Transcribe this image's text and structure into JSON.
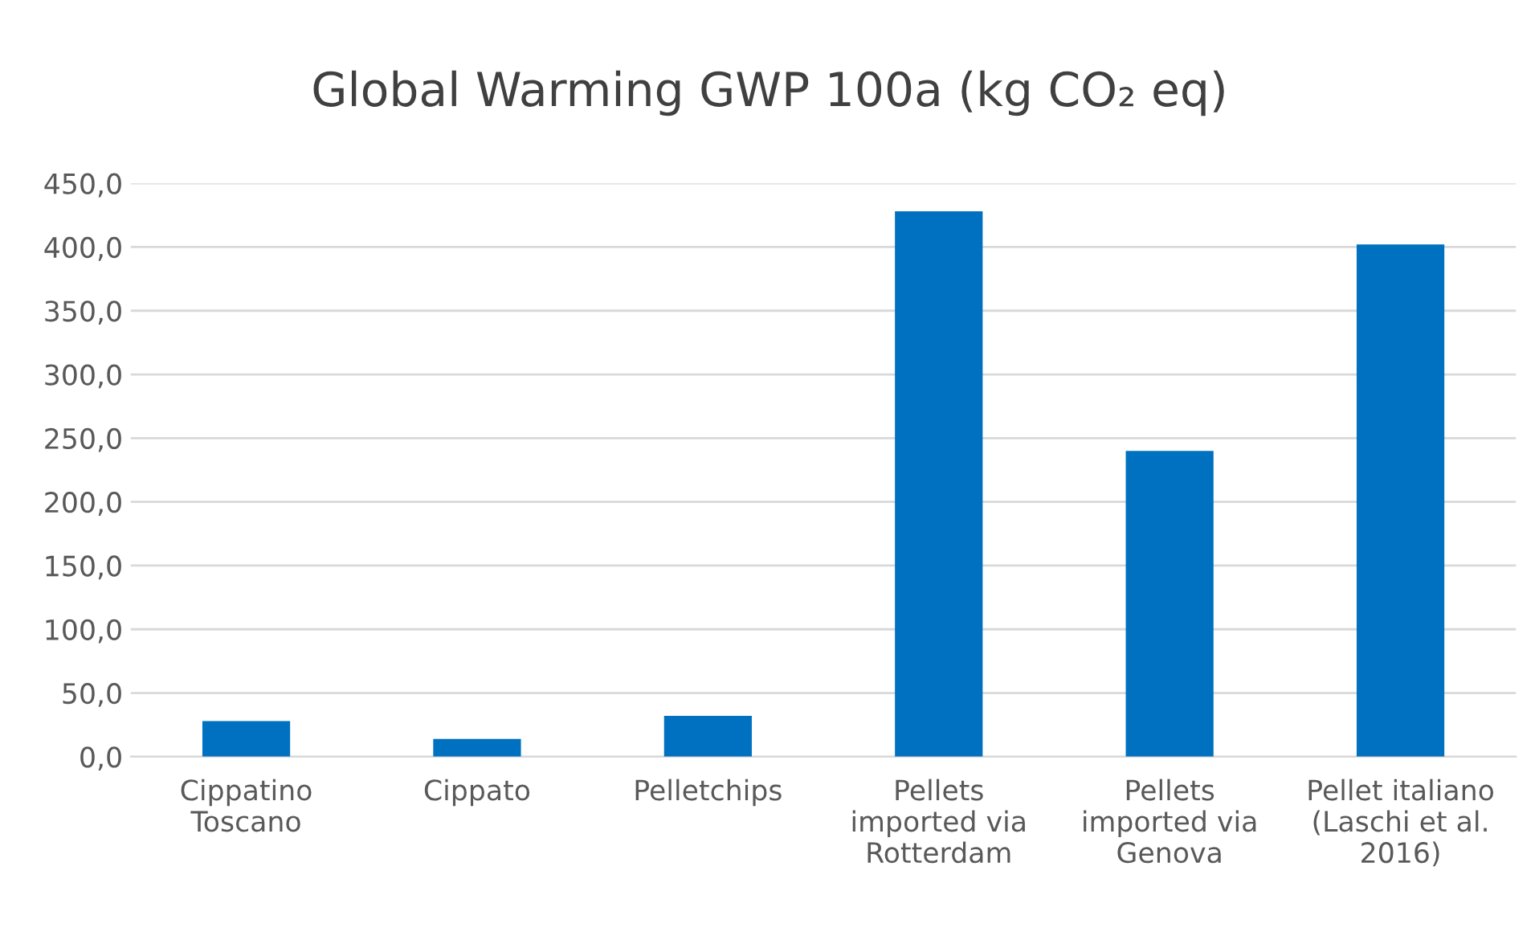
{
  "chart_data": {
    "type": "bar",
    "title": "Global Warming GWP 100a (kg CO₂ eq)",
    "categories": [
      "Cippatino\nToscano",
      "Cippato",
      "Pelletchips",
      "Pellets\nimported via\nRotterdam",
      "Pellets\nimported via\nGenova",
      "Pellet italiano\n(Laschi et al.\n2016)"
    ],
    "values": [
      28,
      14,
      32,
      428,
      240,
      402
    ],
    "color": "#0070c0",
    "ylim": [
      0,
      450
    ],
    "yticks": [
      {
        "value": 0,
        "label": "0,0"
      },
      {
        "value": 50,
        "label": "50,0"
      },
      {
        "value": 100,
        "label": "100,0"
      },
      {
        "value": 150,
        "label": "150,0"
      },
      {
        "value": 200,
        "label": "200,0"
      },
      {
        "value": 250,
        "label": "250,0"
      },
      {
        "value": 300,
        "label": "300,0"
      },
      {
        "value": 350,
        "label": "350,0"
      },
      {
        "value": 400,
        "label": "400,0"
      },
      {
        "value": 450,
        "label": "450,0"
      }
    ],
    "grid": "y"
  }
}
